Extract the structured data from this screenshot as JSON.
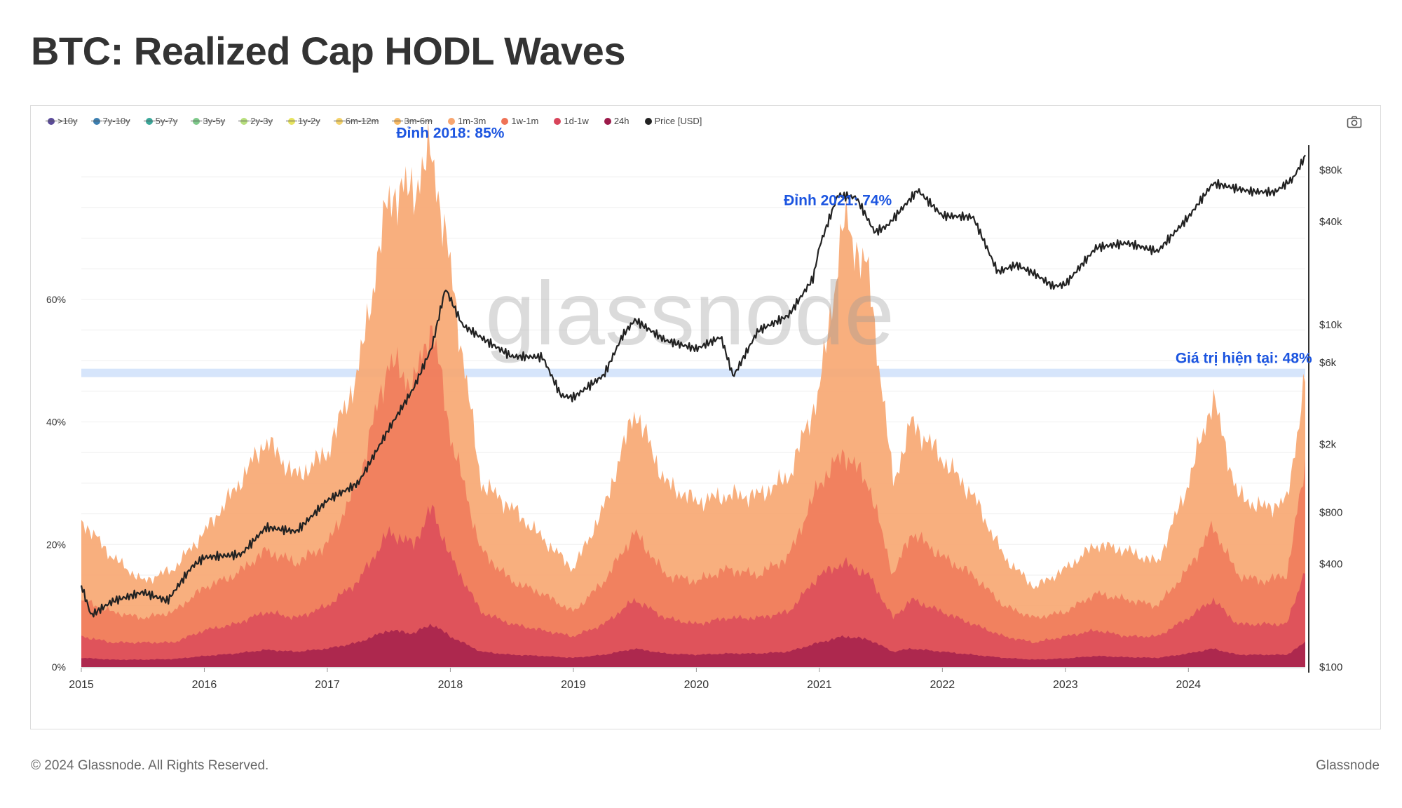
{
  "page": {
    "title": "BTC: Realized Cap HODL Waves",
    "footer_left": "© 2024 Glassnode. All Rights Reserved.",
    "footer_right": "Glassnode"
  },
  "legend": [
    {
      "label": ">10y",
      "color": "#5b4b9a",
      "enabled": false
    },
    {
      "label": "7y-10y",
      "color": "#3c7fb1",
      "enabled": false
    },
    {
      "label": "5y-7y",
      "color": "#3aa89a",
      "enabled": false
    },
    {
      "label": "3y-5y",
      "color": "#7ec98a",
      "enabled": false
    },
    {
      "label": "2y-3y",
      "color": "#b7df7d",
      "enabled": false
    },
    {
      "label": "1y-2y",
      "color": "#e6e35f",
      "enabled": false
    },
    {
      "label": "6m-12m",
      "color": "#f4d26a",
      "enabled": false
    },
    {
      "label": "3m-6m",
      "color": "#f7b964",
      "enabled": false
    },
    {
      "label": "1m-3m",
      "color": "#f7a670",
      "enabled": true
    },
    {
      "label": "1w-1m",
      "color": "#ef7256",
      "enabled": true
    },
    {
      "label": "1d-1w",
      "color": "#d8445a",
      "enabled": true
    },
    {
      "label": "24h",
      "color": "#9c1a4a",
      "enabled": true
    },
    {
      "label": "Price [USD]",
      "color": "#222222",
      "enabled": true
    }
  ],
  "toolbar": {
    "camera_icon": "camera-icon"
  },
  "watermark": "glassnode",
  "chart_data": {
    "type": "area",
    "title": "BTC: Realized Cap HODL Waves",
    "x_ticks": [
      "2015",
      "2016",
      "2017",
      "2018",
      "2019",
      "2020",
      "2021",
      "2022",
      "2023",
      "2024"
    ],
    "x_range": [
      2015.0,
      2024.95
    ],
    "y_left_ticks": [
      {
        "value": 0,
        "label": "0%"
      },
      {
        "value": 20,
        "label": "20%"
      },
      {
        "value": 40,
        "label": "40%"
      },
      {
        "value": 60,
        "label": "60%"
      }
    ],
    "y_left_range": [
      0,
      87
    ],
    "y_right_scale": "log",
    "y_right_range": [
      100,
      130000
    ],
    "y_right_ticks": [
      {
        "value": 100,
        "label": "$100"
      },
      {
        "value": 400,
        "label": "$400"
      },
      {
        "value": 800,
        "label": "$800"
      },
      {
        "value": 2000,
        "label": "$2k"
      },
      {
        "value": 6000,
        "label": "$6k"
      },
      {
        "value": 10000,
        "label": "$10k"
      },
      {
        "value": 40000,
        "label": "$40k"
      },
      {
        "value": 80000,
        "label": "$80k"
      }
    ],
    "grid": true,
    "legend_position": "top-left",
    "x": [
      2015.0,
      2015.25,
      2015.5,
      2015.75,
      2016.0,
      2016.25,
      2016.5,
      2016.75,
      2017.0,
      2017.25,
      2017.5,
      2017.7,
      2017.85,
      2018.0,
      2018.25,
      2018.5,
      2018.75,
      2019.0,
      2019.25,
      2019.5,
      2019.75,
      2020.0,
      2020.25,
      2020.5,
      2020.75,
      2021.0,
      2021.2,
      2021.4,
      2021.6,
      2021.75,
      2022.0,
      2022.25,
      2022.5,
      2022.75,
      2023.0,
      2023.25,
      2023.5,
      2023.75,
      2024.0,
      2024.2,
      2024.4,
      2024.6,
      2024.8,
      2024.95
    ],
    "series": [
      {
        "name": "1m-3m",
        "color": "#f7a670",
        "values": [
          24,
          18,
          14,
          16,
          22,
          29,
          37,
          31,
          35,
          48,
          77,
          78,
          84,
          65,
          30,
          26,
          21,
          16,
          26,
          42,
          30,
          27,
          28,
          28,
          31,
          45,
          73,
          64,
          30,
          40,
          34,
          28,
          18,
          13,
          16,
          20,
          19,
          17,
          30,
          44,
          28,
          26,
          27,
          47
        ]
      },
      {
        "name": "1w-1m",
        "color": "#ef7256",
        "values": [
          11,
          9,
          8,
          9,
          13,
          15,
          19,
          17,
          20,
          30,
          50,
          46,
          56,
          38,
          19,
          14,
          12,
          9,
          14,
          22,
          15,
          14,
          16,
          15,
          18,
          30,
          35,
          30,
          15,
          22,
          18,
          15,
          10,
          8,
          9,
          12,
          11,
          10,
          16,
          23,
          15,
          14,
          15,
          33
        ]
      },
      {
        "name": "1d-1w",
        "color": "#d8445a",
        "values": [
          5,
          4,
          4,
          4,
          6,
          7,
          9,
          8,
          10,
          14,
          22,
          20,
          26,
          18,
          9,
          7,
          6,
          5,
          7,
          11,
          8,
          7,
          8,
          8,
          9,
          15,
          17,
          15,
          8,
          11,
          9,
          7,
          5,
          4,
          5,
          6,
          5,
          5,
          8,
          11,
          7,
          7,
          7,
          16
        ]
      },
      {
        "name": "24h",
        "color": "#9c1a4a",
        "values": [
          1.5,
          1.2,
          1.2,
          1.3,
          1.8,
          2.2,
          2.8,
          2.5,
          3,
          4,
          6,
          5.5,
          7,
          5,
          2.5,
          2,
          1.8,
          1.5,
          2,
          3,
          2.2,
          2,
          2.2,
          2.2,
          2.5,
          4,
          5,
          4.5,
          2.5,
          3,
          2.5,
          2,
          1.5,
          1.2,
          1.4,
          1.8,
          1.6,
          1.5,
          2.2,
          3,
          2,
          2,
          2,
          4
        ]
      }
    ],
    "price_series": {
      "name": "Price [USD]",
      "color": "#222222",
      "x": [
        2015.0,
        2015.08,
        2015.25,
        2015.5,
        2015.7,
        2015.9,
        2016.0,
        2016.3,
        2016.5,
        2016.75,
        2017.0,
        2017.25,
        2017.5,
        2017.7,
        2017.85,
        2017.96,
        2018.1,
        2018.3,
        2018.5,
        2018.75,
        2018.9,
        2019.0,
        2019.25,
        2019.4,
        2019.5,
        2019.75,
        2020.0,
        2020.2,
        2020.3,
        2020.5,
        2020.75,
        2020.95,
        2021.0,
        2021.15,
        2021.3,
        2021.45,
        2021.55,
        2021.8,
        2022.0,
        2022.25,
        2022.45,
        2022.6,
        2022.75,
        2022.9,
        2023.0,
        2023.25,
        2023.5,
        2023.75,
        2024.0,
        2024.2,
        2024.5,
        2024.7,
        2024.85,
        2024.95
      ],
      "values": [
        300,
        200,
        240,
        270,
        240,
        380,
        430,
        450,
        650,
        620,
        950,
        1200,
        2500,
        4300,
        7500,
        16500,
        10000,
        8000,
        6500,
        6400,
        3800,
        3700,
        5000,
        8500,
        10500,
        8000,
        7200,
        8500,
        5000,
        9300,
        11500,
        19000,
        29000,
        58000,
        56000,
        35000,
        38000,
        61000,
        43000,
        42000,
        20000,
        22000,
        19500,
        16500,
        17000,
        28000,
        30000,
        27000,
        43000,
        68000,
        61000,
        60000,
        72000,
        97000
      ]
    },
    "reference_line": {
      "value": 48,
      "color": "#cfe0fa"
    },
    "annotations": [
      {
        "text": "Đỉnh 2018: 85%",
        "x": 2018.0,
        "y": 85
      },
      {
        "text": "Đỉnh 2021: 74%",
        "x": 2021.15,
        "y": 74
      },
      {
        "text": "Giá trị hiện tại: 48%",
        "x": 2024.45,
        "y": 48
      }
    ]
  }
}
